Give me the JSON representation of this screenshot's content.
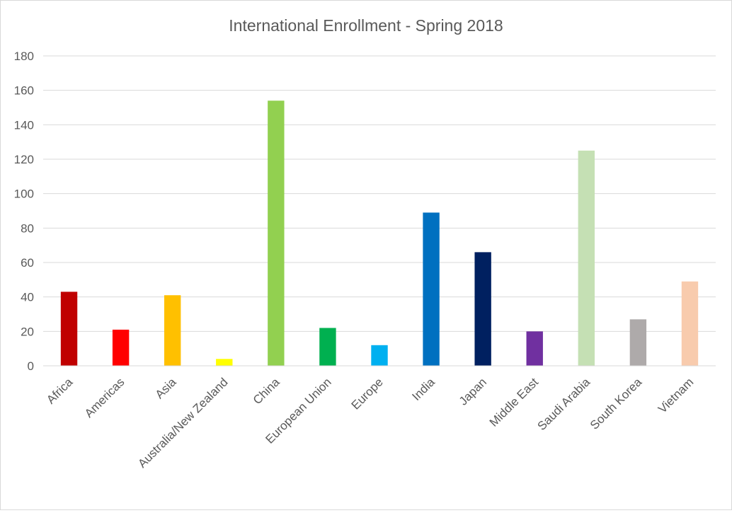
{
  "chart_data": {
    "type": "bar",
    "title": "International Enrollment - Spring 2018",
    "xlabel": "",
    "ylabel": "",
    "ylim": [
      0,
      180
    ],
    "yticks": [
      0,
      20,
      40,
      60,
      80,
      100,
      120,
      140,
      160,
      180
    ],
    "grid": true,
    "legend": "none",
    "categories": [
      "Africa",
      "Americas",
      "Asia",
      "Australia/New Zealand",
      "China",
      "European Union",
      "Europe",
      "India",
      "Japan",
      "Middle East",
      "Saudi Arabia",
      "South Korea",
      "Vietnam"
    ],
    "values": [
      43,
      21,
      41,
      4,
      154,
      22,
      12,
      89,
      66,
      20,
      125,
      27,
      49
    ],
    "colors": [
      "#C00000",
      "#FF0000",
      "#FFC000",
      "#FFFF00",
      "#92D050",
      "#00B050",
      "#00B0F0",
      "#0070C0",
      "#002060",
      "#7030A0",
      "#C5E0B4",
      "#AEAAAA",
      "#F8CBAD"
    ]
  }
}
